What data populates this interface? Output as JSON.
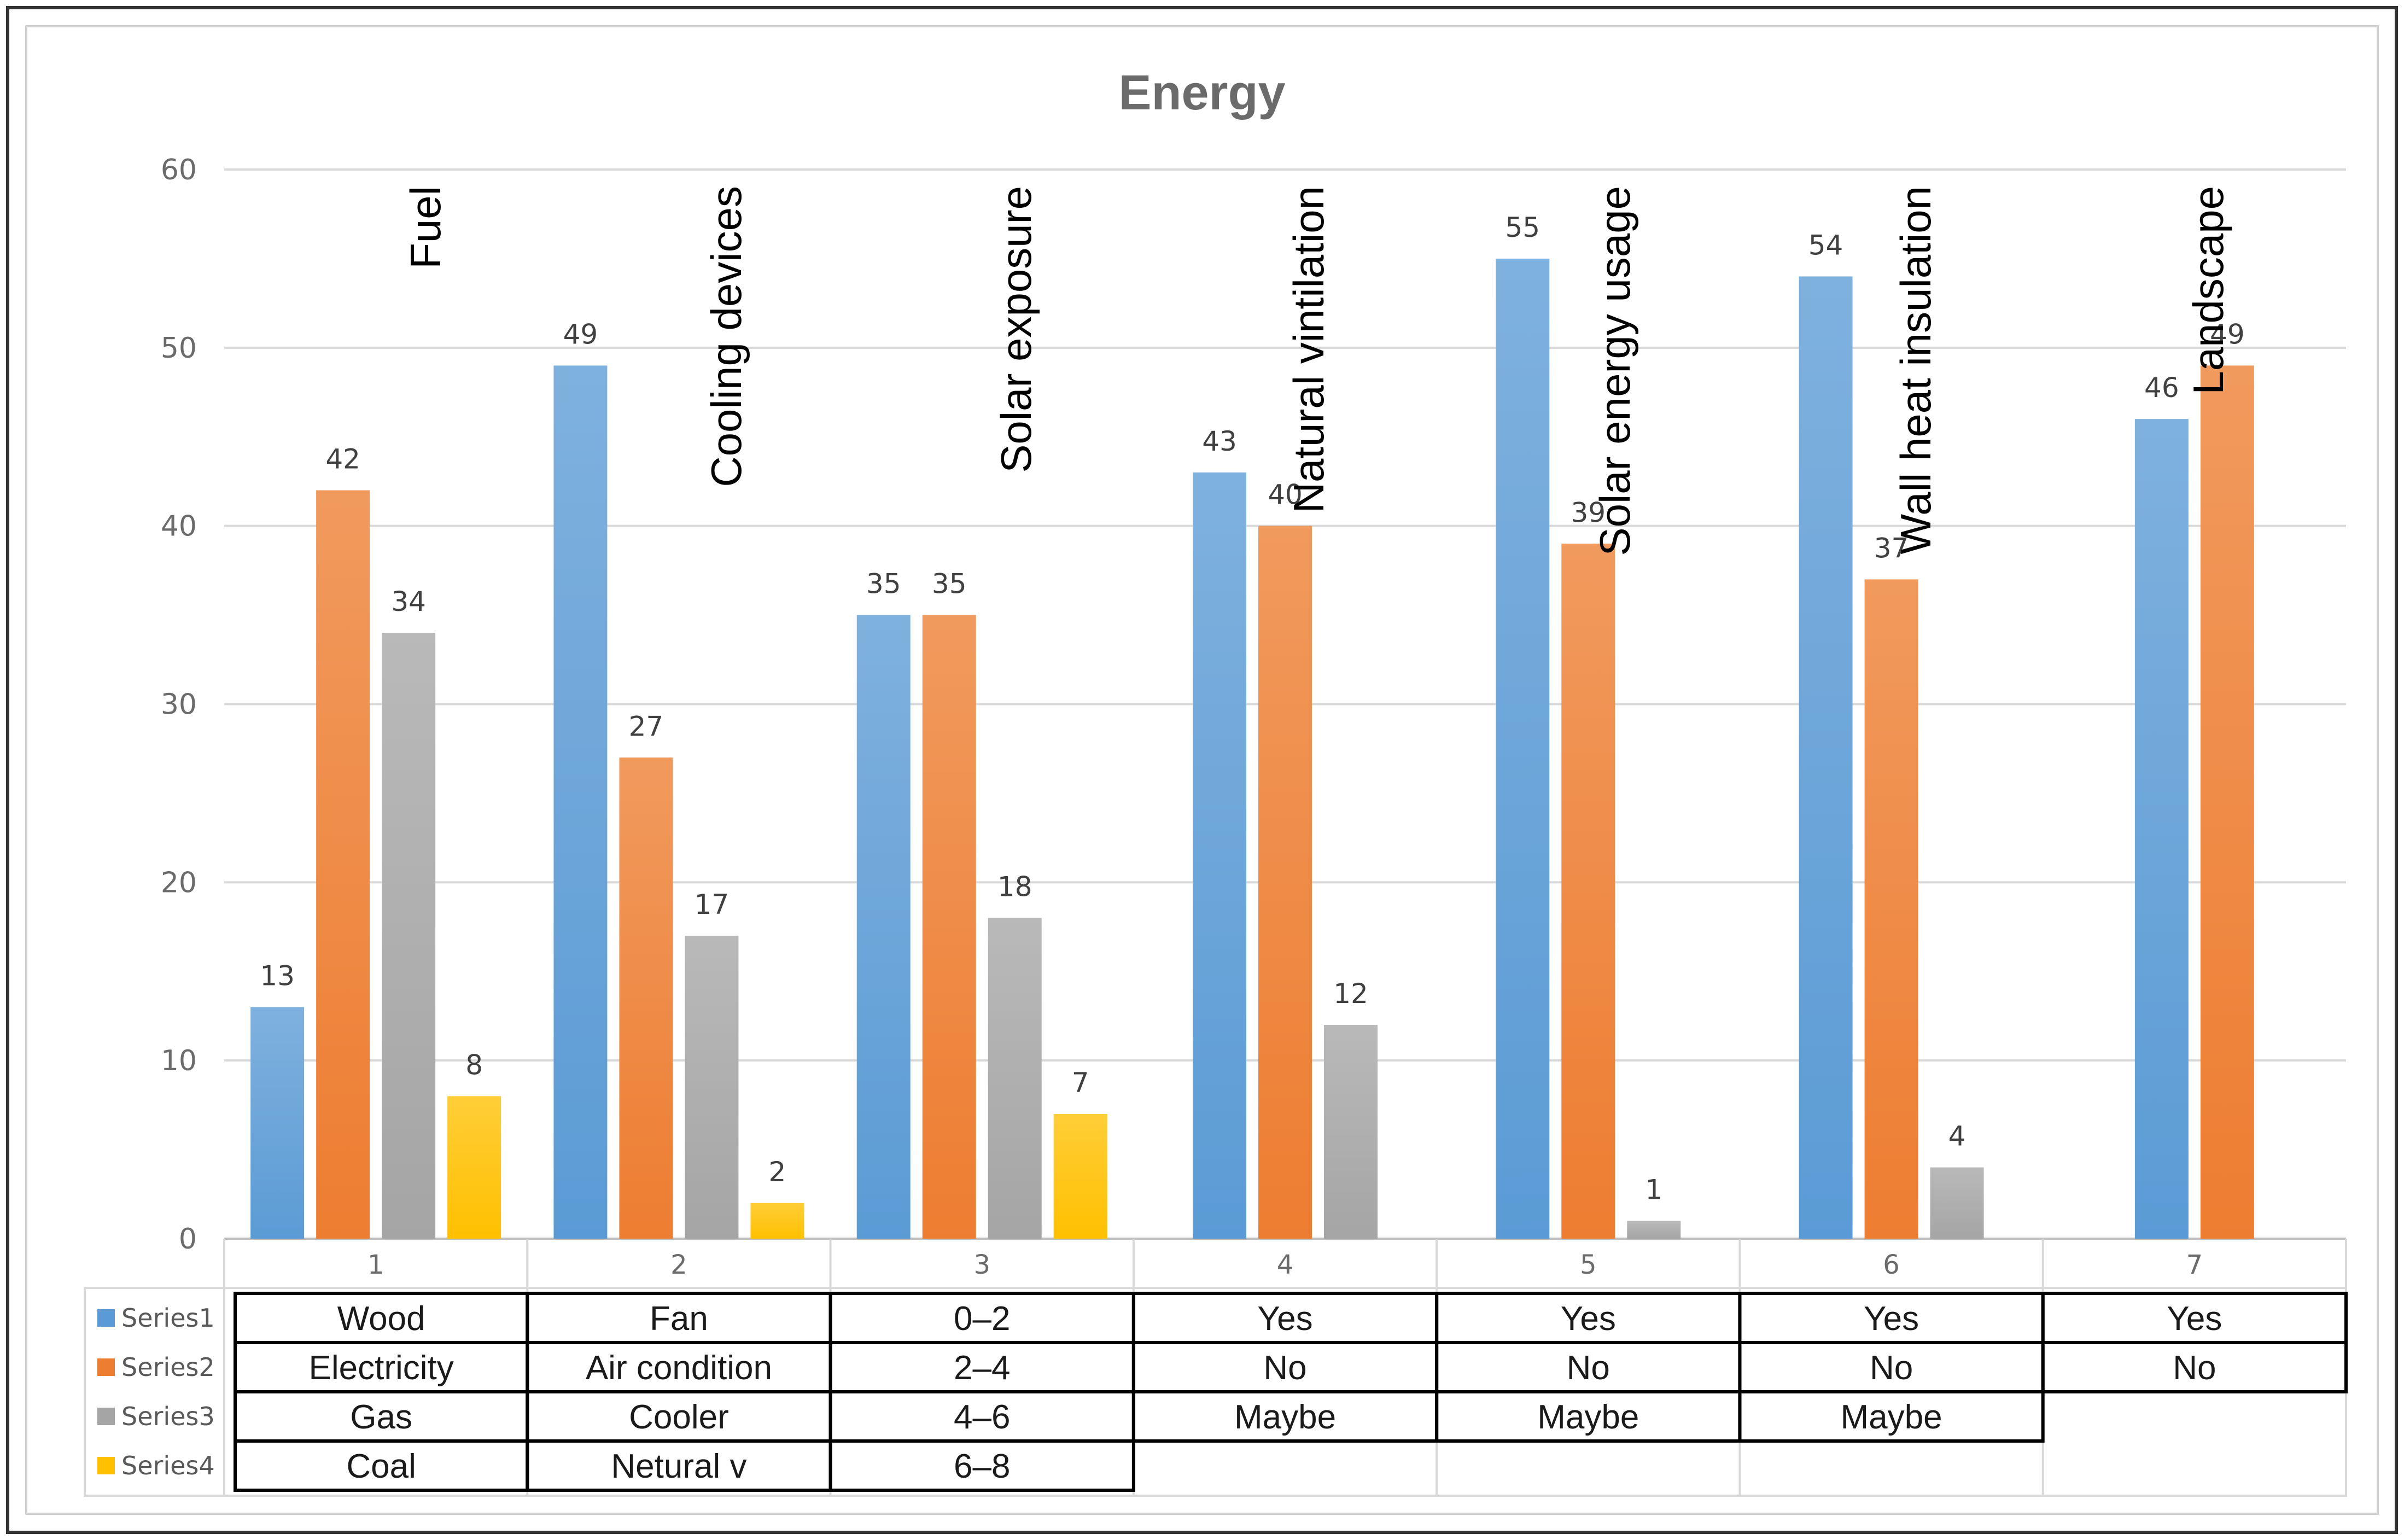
{
  "chart_data": {
    "type": "bar",
    "title": "Energy",
    "categories": [
      "1",
      "2",
      "3",
      "4",
      "5",
      "6",
      "7"
    ],
    "category_labels": [
      "Fuel",
      "Cooling devices",
      "Solar exposure",
      "Natural vintilation",
      "Solar energy usage",
      "Wall heat insulation",
      "Landscape"
    ],
    "ylim": [
      0,
      60
    ],
    "yticks": [
      "0",
      "10",
      "20",
      "30",
      "40",
      "50",
      "60"
    ],
    "grid": true,
    "series": [
      {
        "name": "Series1",
        "color": "#5B9BD5",
        "values": [
          13,
          49,
          35,
          43,
          55,
          54,
          46
        ]
      },
      {
        "name": "Series2",
        "color": "#ED7D31",
        "values": [
          42,
          27,
          35,
          40,
          39,
          37,
          49
        ]
      },
      {
        "name": "Series3",
        "color": "#A5A5A5",
        "values": [
          34,
          17,
          18,
          12,
          1,
          4,
          null
        ]
      },
      {
        "name": "Series4",
        "color": "#FFC000",
        "values": [
          8,
          2,
          7,
          null,
          null,
          null,
          null
        ]
      }
    ],
    "data_table": [
      [
        "Wood",
        "Fan",
        "0–2",
        "Yes",
        "Yes",
        "Yes",
        "Yes"
      ],
      [
        "Electricity",
        "Air condition",
        "2–4",
        "No",
        "No",
        "No",
        "No"
      ],
      [
        "Gas",
        "Cooler",
        "4–6",
        "Maybe",
        "Maybe",
        "Maybe",
        ""
      ],
      [
        "Coal",
        "Netural v",
        "6–8",
        "",
        "",
        "",
        ""
      ]
    ]
  }
}
